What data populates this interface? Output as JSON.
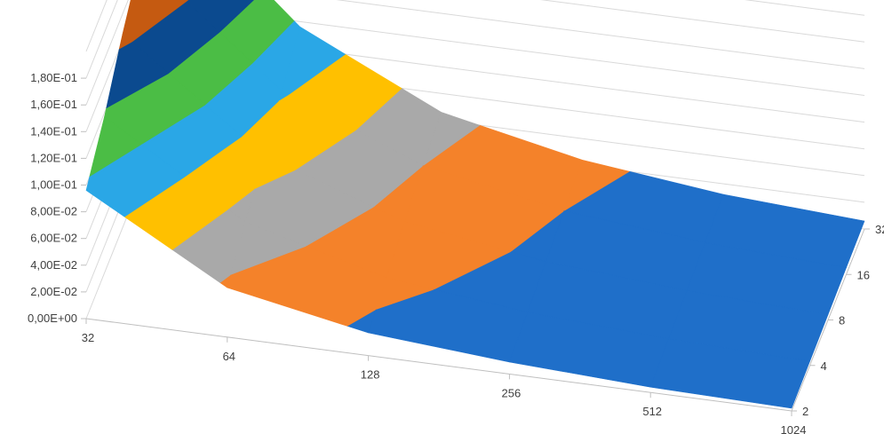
{
  "chart_data": {
    "type": "surface",
    "title": "",
    "x_categories": [
      "32",
      "64",
      "128",
      "256",
      "512",
      "1024"
    ],
    "depth_categories": [
      "2",
      "4",
      "8",
      "16",
      "32"
    ],
    "z_tick_labels": [
      "0,00E+00",
      "2,00E-02",
      "4,00E-02",
      "6,00E-02",
      "8,00E-02",
      "1,00E-01",
      "1,20E-01",
      "1,40E-01",
      "1,60E-01",
      "1,80E-01"
    ],
    "zlim": [
      0,
      0.2
    ],
    "z_band_step": 0.02,
    "band_colors": [
      "#1f6fc9",
      "#f4822a",
      "#a9a9a9",
      "#ffc000",
      "#2aa7e6",
      "#4bbd45",
      "#0b4a8f",
      "#c55a11",
      "#7f7f7f",
      "#5b5b5b"
    ],
    "grid": true,
    "values": [
      [
        0.096,
        0.037,
        0.017,
        0.009,
        0.004,
        0.002
      ],
      [
        0.117,
        0.052,
        0.024,
        0.012,
        0.006,
        0.003
      ],
      [
        0.145,
        0.068,
        0.032,
        0.016,
        0.008,
        0.004
      ],
      [
        0.168,
        0.082,
        0.04,
        0.02,
        0.01,
        0.005
      ],
      [
        0.19,
        0.096,
        0.046,
        0.024,
        0.012,
        0.006
      ]
    ]
  }
}
